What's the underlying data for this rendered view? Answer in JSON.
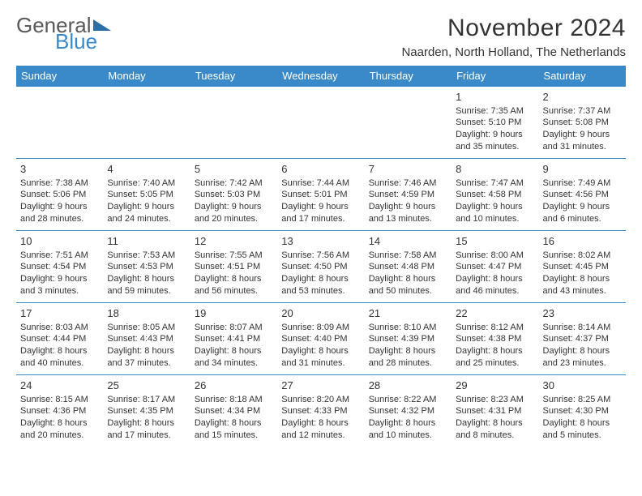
{
  "brand": {
    "word1": "General",
    "word2": "Blue"
  },
  "title": "November 2024",
  "location": "Naarden, North Holland, The Netherlands",
  "colors": {
    "header_bg": "#3a8ac9",
    "header_text": "#ffffff",
    "rule": "#3a8ac9",
    "text": "#333333",
    "logo_gray": "#58595b",
    "logo_blue": "#3a8ac9",
    "background": "#ffffff"
  },
  "dayNames": [
    "Sunday",
    "Monday",
    "Tuesday",
    "Wednesday",
    "Thursday",
    "Friday",
    "Saturday"
  ],
  "weeks": [
    [
      null,
      null,
      null,
      null,
      null,
      {
        "n": "1",
        "sr": "7:35 AM",
        "ss": "5:10 PM",
        "d": "9 hours and 35 minutes."
      },
      {
        "n": "2",
        "sr": "7:37 AM",
        "ss": "5:08 PM",
        "d": "9 hours and 31 minutes."
      }
    ],
    [
      {
        "n": "3",
        "sr": "7:38 AM",
        "ss": "5:06 PM",
        "d": "9 hours and 28 minutes."
      },
      {
        "n": "4",
        "sr": "7:40 AM",
        "ss": "5:05 PM",
        "d": "9 hours and 24 minutes."
      },
      {
        "n": "5",
        "sr": "7:42 AM",
        "ss": "5:03 PM",
        "d": "9 hours and 20 minutes."
      },
      {
        "n": "6",
        "sr": "7:44 AM",
        "ss": "5:01 PM",
        "d": "9 hours and 17 minutes."
      },
      {
        "n": "7",
        "sr": "7:46 AM",
        "ss": "4:59 PM",
        "d": "9 hours and 13 minutes."
      },
      {
        "n": "8",
        "sr": "7:47 AM",
        "ss": "4:58 PM",
        "d": "9 hours and 10 minutes."
      },
      {
        "n": "9",
        "sr": "7:49 AM",
        "ss": "4:56 PM",
        "d": "9 hours and 6 minutes."
      }
    ],
    [
      {
        "n": "10",
        "sr": "7:51 AM",
        "ss": "4:54 PM",
        "d": "9 hours and 3 minutes."
      },
      {
        "n": "11",
        "sr": "7:53 AM",
        "ss": "4:53 PM",
        "d": "8 hours and 59 minutes."
      },
      {
        "n": "12",
        "sr": "7:55 AM",
        "ss": "4:51 PM",
        "d": "8 hours and 56 minutes."
      },
      {
        "n": "13",
        "sr": "7:56 AM",
        "ss": "4:50 PM",
        "d": "8 hours and 53 minutes."
      },
      {
        "n": "14",
        "sr": "7:58 AM",
        "ss": "4:48 PM",
        "d": "8 hours and 50 minutes."
      },
      {
        "n": "15",
        "sr": "8:00 AM",
        "ss": "4:47 PM",
        "d": "8 hours and 46 minutes."
      },
      {
        "n": "16",
        "sr": "8:02 AM",
        "ss": "4:45 PM",
        "d": "8 hours and 43 minutes."
      }
    ],
    [
      {
        "n": "17",
        "sr": "8:03 AM",
        "ss": "4:44 PM",
        "d": "8 hours and 40 minutes."
      },
      {
        "n": "18",
        "sr": "8:05 AM",
        "ss": "4:43 PM",
        "d": "8 hours and 37 minutes."
      },
      {
        "n": "19",
        "sr": "8:07 AM",
        "ss": "4:41 PM",
        "d": "8 hours and 34 minutes."
      },
      {
        "n": "20",
        "sr": "8:09 AM",
        "ss": "4:40 PM",
        "d": "8 hours and 31 minutes."
      },
      {
        "n": "21",
        "sr": "8:10 AM",
        "ss": "4:39 PM",
        "d": "8 hours and 28 minutes."
      },
      {
        "n": "22",
        "sr": "8:12 AM",
        "ss": "4:38 PM",
        "d": "8 hours and 25 minutes."
      },
      {
        "n": "23",
        "sr": "8:14 AM",
        "ss": "4:37 PM",
        "d": "8 hours and 23 minutes."
      }
    ],
    [
      {
        "n": "24",
        "sr": "8:15 AM",
        "ss": "4:36 PM",
        "d": "8 hours and 20 minutes."
      },
      {
        "n": "25",
        "sr": "8:17 AM",
        "ss": "4:35 PM",
        "d": "8 hours and 17 minutes."
      },
      {
        "n": "26",
        "sr": "8:18 AM",
        "ss": "4:34 PM",
        "d": "8 hours and 15 minutes."
      },
      {
        "n": "27",
        "sr": "8:20 AM",
        "ss": "4:33 PM",
        "d": "8 hours and 12 minutes."
      },
      {
        "n": "28",
        "sr": "8:22 AM",
        "ss": "4:32 PM",
        "d": "8 hours and 10 minutes."
      },
      {
        "n": "29",
        "sr": "8:23 AM",
        "ss": "4:31 PM",
        "d": "8 hours and 8 minutes."
      },
      {
        "n": "30",
        "sr": "8:25 AM",
        "ss": "4:30 PM",
        "d": "8 hours and 5 minutes."
      }
    ]
  ],
  "labels": {
    "sunrise": "Sunrise:",
    "sunset": "Sunset:",
    "daylight": "Daylight:"
  }
}
